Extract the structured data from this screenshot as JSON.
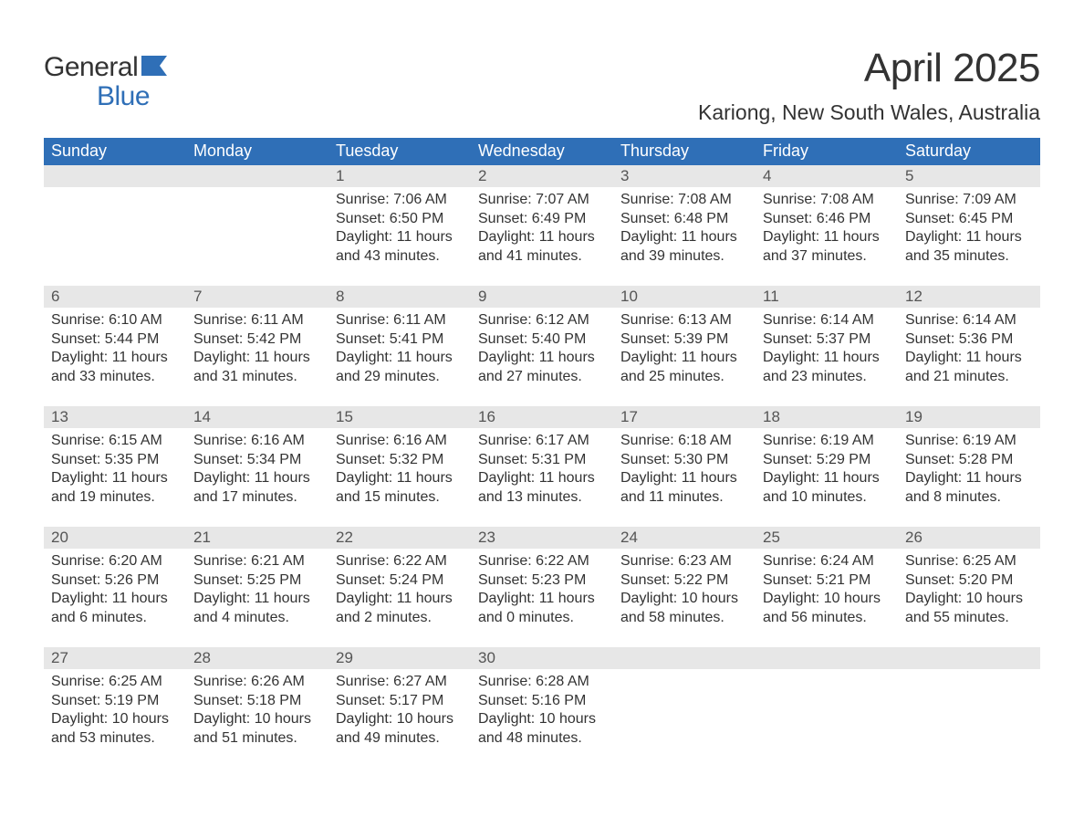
{
  "logo": {
    "general": "General",
    "blue": "Blue"
  },
  "title": "April 2025",
  "location": "Kariong, New South Wales, Australia",
  "colors": {
    "header_bg": "#2f6fb7",
    "header_text": "#ffffff",
    "daynum_bg": "#e7e7e7",
    "text": "#333333",
    "logo_blue": "#2f6fb7",
    "page_bg": "#ffffff"
  },
  "fonts": {
    "month_title_size": 44,
    "location_size": 23,
    "header_cell_size": 18,
    "daynum_size": 17,
    "body_size": 16
  },
  "daysOfWeek": [
    "Sunday",
    "Monday",
    "Tuesday",
    "Wednesday",
    "Thursday",
    "Friday",
    "Saturday"
  ],
  "weeks": [
    [
      {
        "empty": true
      },
      {
        "empty": true
      },
      {
        "day": "1",
        "sunrise": "Sunrise: 7:06 AM",
        "sunset": "Sunset: 6:50 PM",
        "daylight": "Daylight: 11 hours and 43 minutes."
      },
      {
        "day": "2",
        "sunrise": "Sunrise: 7:07 AM",
        "sunset": "Sunset: 6:49 PM",
        "daylight": "Daylight: 11 hours and 41 minutes."
      },
      {
        "day": "3",
        "sunrise": "Sunrise: 7:08 AM",
        "sunset": "Sunset: 6:48 PM",
        "daylight": "Daylight: 11 hours and 39 minutes."
      },
      {
        "day": "4",
        "sunrise": "Sunrise: 7:08 AM",
        "sunset": "Sunset: 6:46 PM",
        "daylight": "Daylight: 11 hours and 37 minutes."
      },
      {
        "day": "5",
        "sunrise": "Sunrise: 7:09 AM",
        "sunset": "Sunset: 6:45 PM",
        "daylight": "Daylight: 11 hours and 35 minutes."
      }
    ],
    [
      {
        "day": "6",
        "sunrise": "Sunrise: 6:10 AM",
        "sunset": "Sunset: 5:44 PM",
        "daylight": "Daylight: 11 hours and 33 minutes."
      },
      {
        "day": "7",
        "sunrise": "Sunrise: 6:11 AM",
        "sunset": "Sunset: 5:42 PM",
        "daylight": "Daylight: 11 hours and 31 minutes."
      },
      {
        "day": "8",
        "sunrise": "Sunrise: 6:11 AM",
        "sunset": "Sunset: 5:41 PM",
        "daylight": "Daylight: 11 hours and 29 minutes."
      },
      {
        "day": "9",
        "sunrise": "Sunrise: 6:12 AM",
        "sunset": "Sunset: 5:40 PM",
        "daylight": "Daylight: 11 hours and 27 minutes."
      },
      {
        "day": "10",
        "sunrise": "Sunrise: 6:13 AM",
        "sunset": "Sunset: 5:39 PM",
        "daylight": "Daylight: 11 hours and 25 minutes."
      },
      {
        "day": "11",
        "sunrise": "Sunrise: 6:14 AM",
        "sunset": "Sunset: 5:37 PM",
        "daylight": "Daylight: 11 hours and 23 minutes."
      },
      {
        "day": "12",
        "sunrise": "Sunrise: 6:14 AM",
        "sunset": "Sunset: 5:36 PM",
        "daylight": "Daylight: 11 hours and 21 minutes."
      }
    ],
    [
      {
        "day": "13",
        "sunrise": "Sunrise: 6:15 AM",
        "sunset": "Sunset: 5:35 PM",
        "daylight": "Daylight: 11 hours and 19 minutes."
      },
      {
        "day": "14",
        "sunrise": "Sunrise: 6:16 AM",
        "sunset": "Sunset: 5:34 PM",
        "daylight": "Daylight: 11 hours and 17 minutes."
      },
      {
        "day": "15",
        "sunrise": "Sunrise: 6:16 AM",
        "sunset": "Sunset: 5:32 PM",
        "daylight": "Daylight: 11 hours and 15 minutes."
      },
      {
        "day": "16",
        "sunrise": "Sunrise: 6:17 AM",
        "sunset": "Sunset: 5:31 PM",
        "daylight": "Daylight: 11 hours and 13 minutes."
      },
      {
        "day": "17",
        "sunrise": "Sunrise: 6:18 AM",
        "sunset": "Sunset: 5:30 PM",
        "daylight": "Daylight: 11 hours and 11 minutes."
      },
      {
        "day": "18",
        "sunrise": "Sunrise: 6:19 AM",
        "sunset": "Sunset: 5:29 PM",
        "daylight": "Daylight: 11 hours and 10 minutes."
      },
      {
        "day": "19",
        "sunrise": "Sunrise: 6:19 AM",
        "sunset": "Sunset: 5:28 PM",
        "daylight": "Daylight: 11 hours and 8 minutes."
      }
    ],
    [
      {
        "day": "20",
        "sunrise": "Sunrise: 6:20 AM",
        "sunset": "Sunset: 5:26 PM",
        "daylight": "Daylight: 11 hours and 6 minutes."
      },
      {
        "day": "21",
        "sunrise": "Sunrise: 6:21 AM",
        "sunset": "Sunset: 5:25 PM",
        "daylight": "Daylight: 11 hours and 4 minutes."
      },
      {
        "day": "22",
        "sunrise": "Sunrise: 6:22 AM",
        "sunset": "Sunset: 5:24 PM",
        "daylight": "Daylight: 11 hours and 2 minutes."
      },
      {
        "day": "23",
        "sunrise": "Sunrise: 6:22 AM",
        "sunset": "Sunset: 5:23 PM",
        "daylight": "Daylight: 11 hours and 0 minutes."
      },
      {
        "day": "24",
        "sunrise": "Sunrise: 6:23 AM",
        "sunset": "Sunset: 5:22 PM",
        "daylight": "Daylight: 10 hours and 58 minutes."
      },
      {
        "day": "25",
        "sunrise": "Sunrise: 6:24 AM",
        "sunset": "Sunset: 5:21 PM",
        "daylight": "Daylight: 10 hours and 56 minutes."
      },
      {
        "day": "26",
        "sunrise": "Sunrise: 6:25 AM",
        "sunset": "Sunset: 5:20 PM",
        "daylight": "Daylight: 10 hours and 55 minutes."
      }
    ],
    [
      {
        "day": "27",
        "sunrise": "Sunrise: 6:25 AM",
        "sunset": "Sunset: 5:19 PM",
        "daylight": "Daylight: 10 hours and 53 minutes."
      },
      {
        "day": "28",
        "sunrise": "Sunrise: 6:26 AM",
        "sunset": "Sunset: 5:18 PM",
        "daylight": "Daylight: 10 hours and 51 minutes."
      },
      {
        "day": "29",
        "sunrise": "Sunrise: 6:27 AM",
        "sunset": "Sunset: 5:17 PM",
        "daylight": "Daylight: 10 hours and 49 minutes."
      },
      {
        "day": "30",
        "sunrise": "Sunrise: 6:28 AM",
        "sunset": "Sunset: 5:16 PM",
        "daylight": "Daylight: 10 hours and 48 minutes."
      },
      {
        "empty": true
      },
      {
        "empty": true
      },
      {
        "empty": true
      }
    ]
  ]
}
